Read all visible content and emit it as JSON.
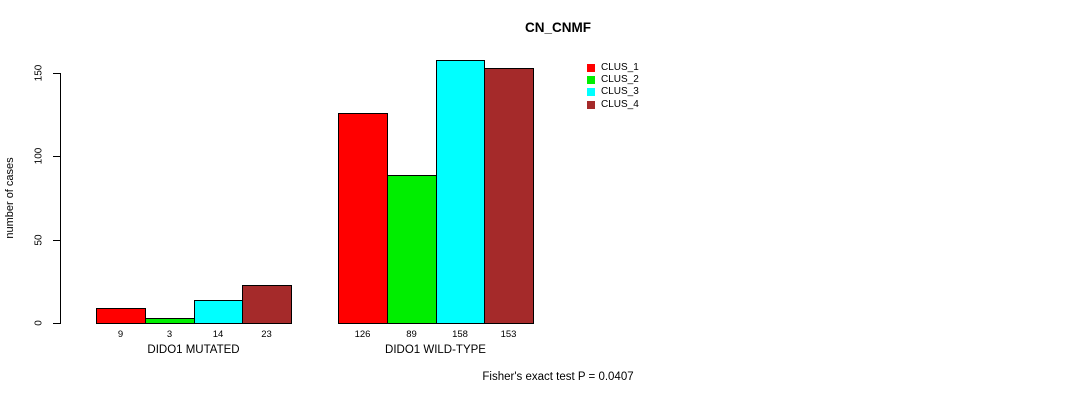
{
  "chart_data": {
    "type": "bar",
    "title": "CN_CNMF",
    "ylabel": "number of cases",
    "xlabel": "",
    "ylim": [
      0,
      150
    ],
    "yticks": [
      0,
      50,
      100,
      150
    ],
    "grid": false,
    "legend_position": "top-right",
    "categories": [
      "DIDO1 MUTATED",
      "DIDO1 WILD-TYPE"
    ],
    "series": [
      {
        "name": "CLUS_1",
        "color": "#ff0000",
        "values": [
          9,
          126
        ]
      },
      {
        "name": "CLUS_2",
        "color": "#00ee00",
        "values": [
          3,
          89
        ]
      },
      {
        "name": "CLUS_3",
        "color": "#00ffff",
        "values": [
          14,
          158
        ]
      },
      {
        "name": "CLUS_4",
        "color": "#a52a2a",
        "values": [
          23,
          153
        ]
      }
    ],
    "bar_value_labels": [
      [
        9,
        3,
        14,
        23
      ],
      [
        126,
        89,
        158,
        153
      ]
    ],
    "annotation": "Fisher's exact test P = 0.0407"
  }
}
